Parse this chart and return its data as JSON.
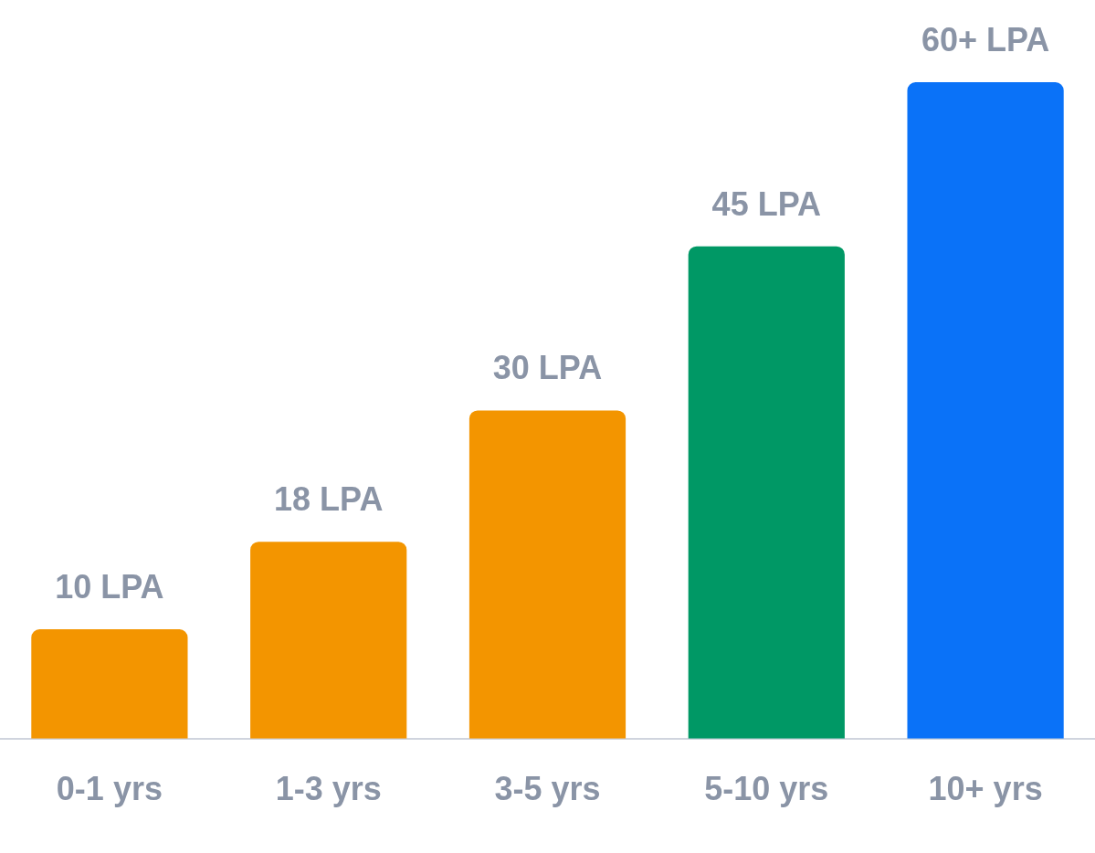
{
  "chart_data": {
    "type": "bar",
    "categories": [
      "0-1 yrs",
      "1-3 yrs",
      "3-5 yrs",
      "5-10 yrs",
      "10+ yrs"
    ],
    "values": [
      10,
      18,
      30,
      45,
      60
    ],
    "colors": [
      "#f39500",
      "#f39500",
      "#f39500",
      "#009865",
      "#0a72f8"
    ],
    "value_labels": [
      "10 LPA",
      "18 LPA",
      "30 LPA",
      "45 LPA",
      "60+ LPA"
    ],
    "grid": false,
    "legend": false
  }
}
